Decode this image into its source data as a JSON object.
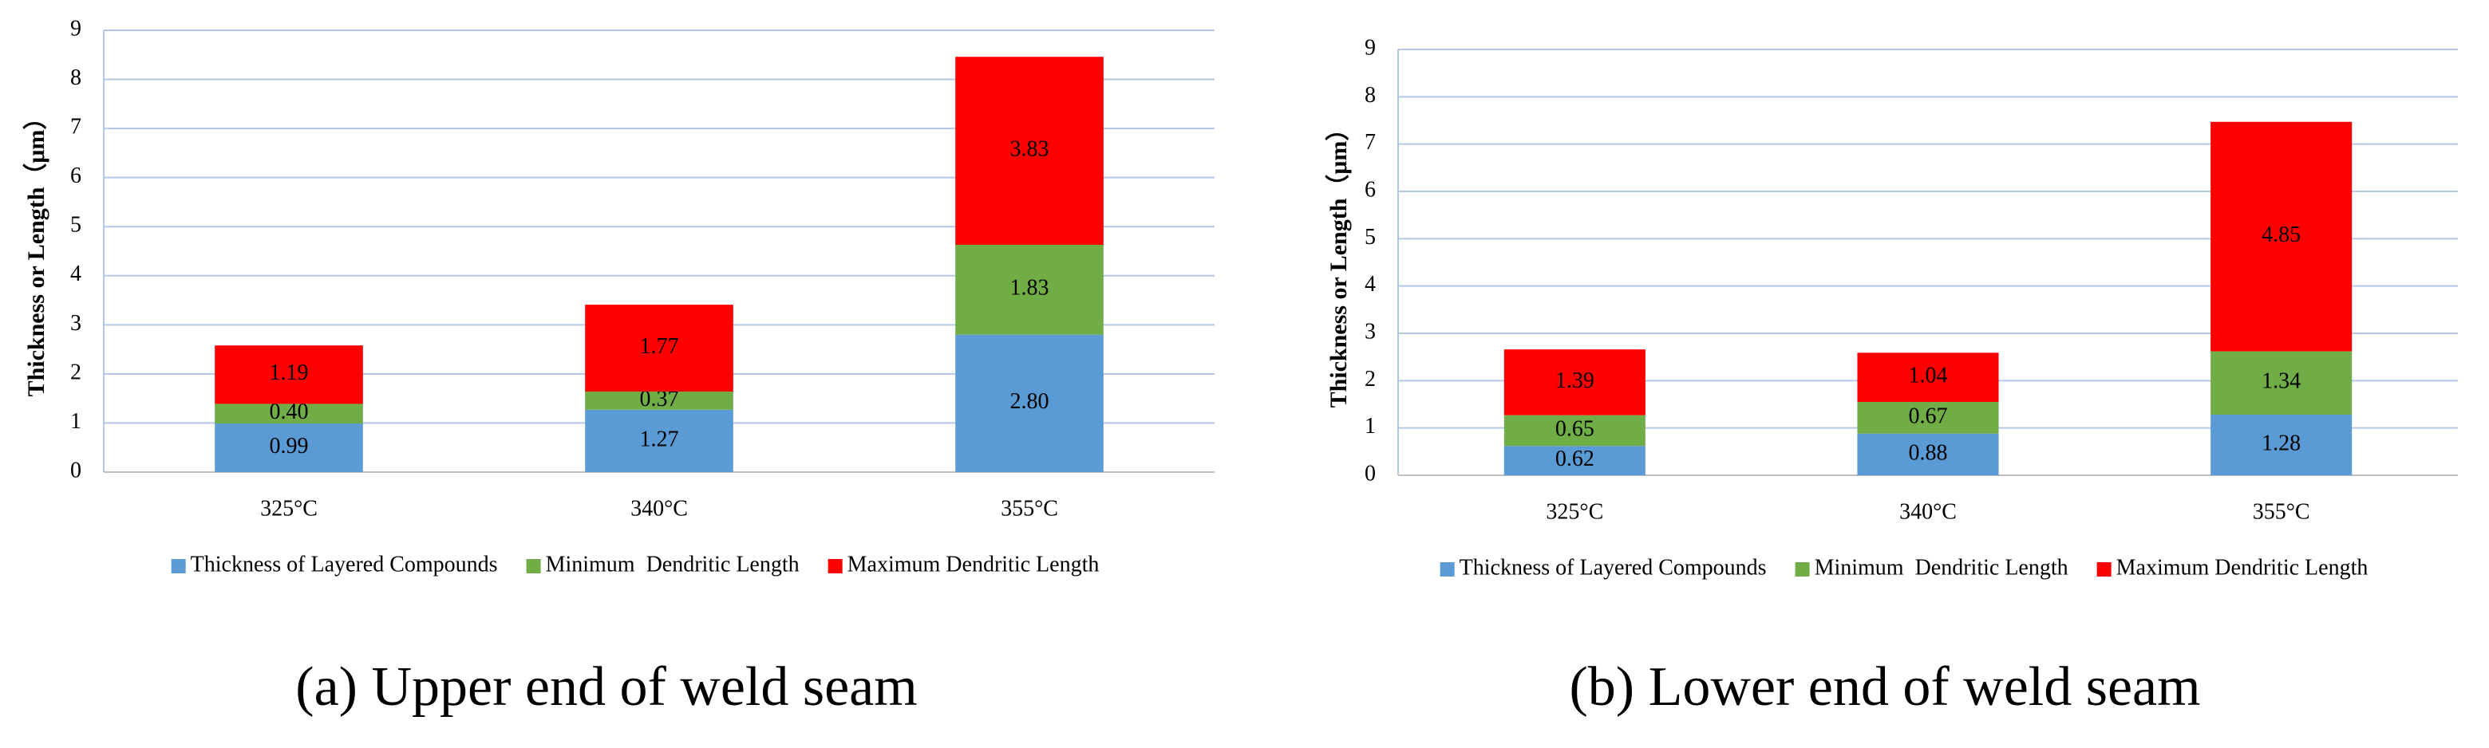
{
  "chart_data": [
    {
      "type": "stacked_bar",
      "caption": "(a) Upper end of weld seam",
      "y_label": "Thickness or Length（μm）",
      "categories": [
        "325°C",
        "340°C",
        "355°C"
      ],
      "series": [
        {
          "name": "Thickness of Layered Compounds",
          "color": "#5b9bd5",
          "values": [
            0.99,
            1.27,
            2.8
          ],
          "value_labels": [
            "0.99",
            "1.27",
            "2.80"
          ]
        },
        {
          "name": "Minimum  Dendritic Length",
          "color": "#70ad47",
          "values": [
            0.4,
            0.37,
            1.83
          ],
          "value_labels": [
            "0.40",
            "0.37",
            "1.83"
          ]
        },
        {
          "name": "Maximum Dendritic Length",
          "color": "#ff0000",
          "values": [
            1.19,
            1.77,
            3.83
          ],
          "value_labels": [
            "1.19",
            "1.77",
            "3.83"
          ]
        }
      ],
      "ylim": [
        0,
        9
      ],
      "yticks": [
        0,
        1,
        2,
        3,
        4,
        5,
        6,
        7,
        8,
        9
      ],
      "grid": true,
      "legend": "bottom"
    },
    {
      "type": "stacked_bar",
      "caption": "(b) Lower end of weld seam",
      "y_label": "Thickness or Length（μm）",
      "categories": [
        "325°C",
        "340°C",
        "355°C"
      ],
      "series": [
        {
          "name": "Thickness of Layered Compounds",
          "color": "#5b9bd5",
          "values": [
            0.62,
            0.88,
            1.28
          ],
          "value_labels": [
            "0.62",
            "0.88",
            "1.28"
          ]
        },
        {
          "name": "Minimum  Dendritic Length",
          "color": "#70ad47",
          "values": [
            0.65,
            0.67,
            1.34
          ],
          "value_labels": [
            "0.65",
            "0.67",
            "1.34"
          ]
        },
        {
          "name": "Maximum Dendritic Length",
          "color": "#ff0000",
          "values": [
            1.39,
            1.04,
            4.85
          ],
          "value_labels": [
            "1.39",
            "1.04",
            "4.85"
          ]
        }
      ],
      "ylim": [
        0,
        9
      ],
      "yticks": [
        0,
        1,
        2,
        3,
        4,
        5,
        6,
        7,
        8,
        9
      ],
      "grid": true,
      "legend": "bottom"
    }
  ]
}
